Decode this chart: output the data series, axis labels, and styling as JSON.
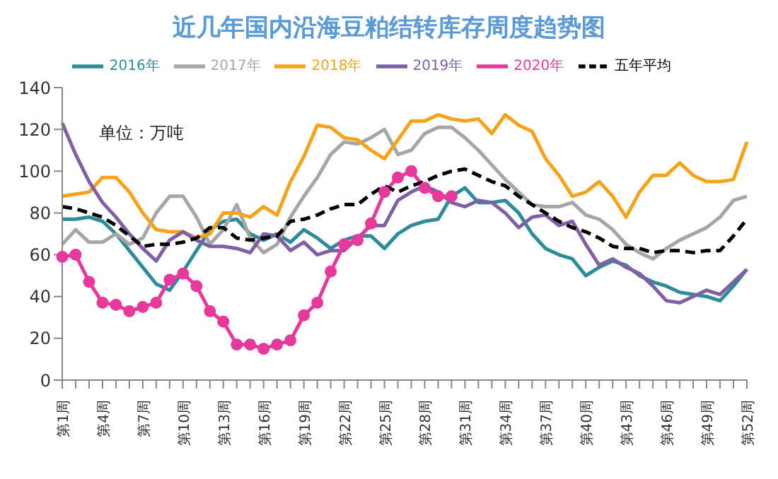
{
  "chart_data": {
    "type": "line",
    "title": "近几年国内沿海豆粕结转库存周度趋势图",
    "annotations": [
      "单位：万吨"
    ],
    "categories": [
      "第1周",
      null,
      null,
      "第4周",
      null,
      null,
      "第7周",
      null,
      null,
      "第10周",
      null,
      null,
      "第13周",
      null,
      null,
      "第16周",
      null,
      null,
      "第19周",
      null,
      null,
      "第22周",
      null,
      null,
      "第25周",
      null,
      null,
      "第28周",
      null,
      null,
      "第31周",
      null,
      null,
      "第34周",
      null,
      null,
      "第37周",
      null,
      null,
      "第40周",
      null,
      null,
      "第43周",
      null,
      null,
      "第46周",
      null,
      null,
      "第49周",
      null,
      null,
      "第52周"
    ],
    "ylim": [
      0,
      140
    ],
    "yticks": [
      0,
      20,
      40,
      60,
      80,
      100,
      120,
      140
    ],
    "grid": false,
    "legend": "top",
    "marker": "none",
    "line_style": "solid",
    "series": [
      {
        "name": "2016年",
        "color": "#2e8b9a",
        "values": [
          77,
          77,
          78,
          76,
          70,
          62,
          54,
          46,
          43,
          52,
          62,
          72,
          76,
          77,
          70,
          67,
          70,
          66,
          72,
          68,
          63,
          67,
          69,
          69,
          63,
          70,
          74,
          76,
          77,
          88,
          92,
          85,
          85,
          86,
          80,
          70,
          63,
          60,
          58,
          50,
          54,
          57,
          55,
          50,
          47,
          45,
          42,
          41,
          40,
          38,
          45,
          53
        ]
      },
      {
        "name": "2017年",
        "color": "#a6a6a6",
        "values": [
          65,
          72,
          66,
          66,
          70,
          65,
          68,
          80,
          88,
          88,
          78,
          65,
          72,
          84,
          68,
          61,
          65,
          78,
          88,
          97,
          108,
          114,
          113,
          116,
          120,
          108,
          110,
          118,
          121,
          121,
          116,
          110,
          103,
          96,
          90,
          84,
          83,
          83,
          85,
          79,
          77,
          72,
          65,
          61,
          58,
          63,
          67,
          70,
          73,
          78,
          86,
          88
        ]
      },
      {
        "name": "2018年",
        "color": "#f5a31b",
        "values": [
          88,
          89,
          90,
          97,
          97,
          90,
          80,
          72,
          71,
          71,
          68,
          70,
          80,
          80,
          78,
          83,
          79,
          95,
          107,
          122,
          121,
          116,
          115,
          110,
          106,
          115,
          124,
          124,
          127,
          125,
          124,
          125,
          118,
          127,
          122,
          119,
          106,
          98,
          88,
          90,
          95,
          88,
          78,
          90,
          98,
          98,
          104,
          98,
          95,
          95,
          96,
          114
        ]
      },
      {
        "name": "2019年",
        "color": "#7f5fa6",
        "values": [
          123,
          108,
          95,
          85,
          78,
          70,
          63,
          57,
          67,
          71,
          67,
          64,
          64,
          63,
          61,
          70,
          69,
          62,
          66,
          60,
          62,
          62,
          68,
          74,
          74,
          86,
          90,
          93,
          90,
          85,
          83,
          86,
          85,
          80,
          73,
          78,
          79,
          74,
          76,
          65,
          55,
          58,
          54,
          51,
          45,
          38,
          37,
          40,
          43,
          41,
          47,
          53
        ]
      },
      {
        "name": "2020年",
        "color": "#e6399b",
        "marker": "circle",
        "values": [
          59,
          60,
          47,
          37,
          36,
          33,
          35,
          37,
          48,
          51,
          45,
          33,
          28,
          17,
          17,
          15,
          17,
          19,
          31,
          37,
          52,
          65,
          67,
          75,
          90,
          97,
          100,
          92,
          88,
          88,
          null,
          null,
          null,
          null,
          null,
          null,
          null,
          null,
          null,
          null,
          null,
          null,
          null,
          null,
          null,
          null,
          null,
          null,
          null,
          null,
          null,
          null
        ]
      },
      {
        "name": "五年平均",
        "color": "#000000",
        "line_style": "dashed",
        "values": [
          83,
          82,
          80,
          78,
          74,
          69,
          64,
          65,
          65,
          66,
          68,
          73,
          73,
          68,
          67,
          68,
          69,
          76,
          77,
          79,
          82,
          84,
          84,
          89,
          93,
          90,
          93,
          95,
          98,
          100,
          101,
          98,
          95,
          93,
          88,
          84,
          80,
          76,
          73,
          71,
          68,
          64,
          63,
          63,
          61,
          62,
          62,
          61,
          62,
          62,
          69,
          77
        ]
      }
    ]
  }
}
